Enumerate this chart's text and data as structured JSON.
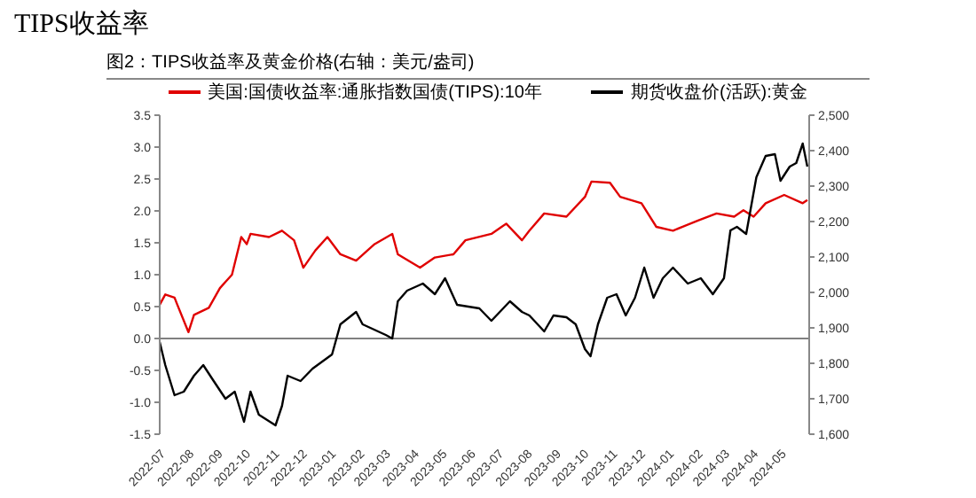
{
  "chart_data": {
    "type": "line",
    "title": "TIPS收益率",
    "subtitle": "图2：TIPS收益率及黄金价格(右轴：美元/盎司)",
    "legend": "top",
    "marker": "none",
    "line_style": "solid",
    "grid": false,
    "xlim": [
      "2022-07-01",
      "2024-06-01"
    ],
    "xticks": [
      {
        "value": "2022-07-01",
        "label": "2022-07"
      },
      {
        "value": "2022-08-01",
        "label": "2022-08"
      },
      {
        "value": "2022-09-01",
        "label": "2022-09"
      },
      {
        "value": "2022-10-01",
        "label": "2022-10"
      },
      {
        "value": "2022-11-01",
        "label": "2022-11"
      },
      {
        "value": "2022-12-01",
        "label": "2022-12"
      },
      {
        "value": "2023-01-01",
        "label": "2023-01"
      },
      {
        "value": "2023-02-01",
        "label": "2023-02"
      },
      {
        "value": "2023-03-01",
        "label": "2023-03"
      },
      {
        "value": "2023-04-01",
        "label": "2023-04"
      },
      {
        "value": "2023-05-01",
        "label": "2023-05"
      },
      {
        "value": "2023-06-01",
        "label": "2023-06"
      },
      {
        "value": "2023-07-01",
        "label": "2023-07"
      },
      {
        "value": "2023-08-01",
        "label": "2023-08"
      },
      {
        "value": "2023-09-01",
        "label": "2023-09"
      },
      {
        "value": "2023-10-01",
        "label": "2023-10"
      },
      {
        "value": "2023-11-01",
        "label": "2023-11"
      },
      {
        "value": "2023-12-01",
        "label": "2023-12"
      },
      {
        "value": "2024-01-01",
        "label": "2024-01"
      },
      {
        "value": "2024-02-01",
        "label": "2024-02"
      },
      {
        "value": "2024-03-01",
        "label": "2024-03"
      },
      {
        "value": "2024-04-01",
        "label": "2024-04"
      },
      {
        "value": "2024-05-01",
        "label": "2024-05"
      }
    ],
    "ylim": [
      -1.5,
      3.5
    ],
    "yticks": [
      {
        "value": -1.5,
        "label": "-1.5"
      },
      {
        "value": -1,
        "label": "-1.0"
      },
      {
        "value": -0.5,
        "label": "-0.5"
      },
      {
        "value": 0,
        "label": "0.0"
      },
      {
        "value": 0.5,
        "label": "0.5"
      },
      {
        "value": 1,
        "label": "1.0"
      },
      {
        "value": 1.5,
        "label": "1.5"
      },
      {
        "value": 2,
        "label": "2.0"
      },
      {
        "value": 2.5,
        "label": "2.5"
      },
      {
        "value": 3,
        "label": "3.0"
      },
      {
        "value": 3.5,
        "label": "3.5"
      }
    ],
    "y2lim": [
      1600,
      2500
    ],
    "y2ticks": [
      {
        "value": 1600,
        "label": "1,600"
      },
      {
        "value": 1700,
        "label": "1,700"
      },
      {
        "value": 1800,
        "label": "1,800"
      },
      {
        "value": 1900,
        "label": "1,900"
      },
      {
        "value": 2000,
        "label": "2,000"
      },
      {
        "value": 2100,
        "label": "2,100"
      },
      {
        "value": 2200,
        "label": "2,200"
      },
      {
        "value": 2300,
        "label": "2,300"
      },
      {
        "value": 2400,
        "label": "2,400"
      },
      {
        "value": 2500,
        "label": "2,500"
      }
    ],
    "ref_lines": [
      {
        "axis": "y",
        "value": 0,
        "color": "#808080"
      }
    ],
    "series": [
      {
        "name": "美国:国债收益率:通胀指数国债(TIPS):10年",
        "color": "#e00000",
        "x": [
          "2022-07-01",
          "2022-07-07",
          "2022-07-17",
          "2022-07-20",
          "2022-08-01",
          "2022-08-07",
          "2022-08-23",
          "2022-09-04",
          "2022-09-17",
          "2022-09-27",
          "2022-10-03",
          "2022-10-07",
          "2022-10-27",
          "2022-11-10",
          "2022-11-23",
          "2022-12-03",
          "2022-12-16",
          "2022-12-29",
          "2023-01-12",
          "2023-01-29",
          "2023-02-18",
          "2023-03-09",
          "2023-03-15",
          "2023-04-08",
          "2023-04-24",
          "2023-05-14",
          "2023-05-27",
          "2023-06-24",
          "2023-07-10",
          "2023-07-27",
          "2023-08-04",
          "2023-08-20",
          "2023-09-13",
          "2023-10-03",
          "2023-10-10",
          "2023-10-30",
          "2023-11-10",
          "2023-12-03",
          "2023-12-19",
          "2024-01-06",
          "2024-02-02",
          "2024-02-22",
          "2024-03-12",
          "2024-03-22",
          "2024-04-02",
          "2024-04-15",
          "2024-05-05",
          "2024-05-25",
          "2024-05-30"
        ],
        "values": [
          0.53,
          0.69,
          0.64,
          0.53,
          0.1,
          0.37,
          0.48,
          0.79,
          1.0,
          1.59,
          1.48,
          1.64,
          1.59,
          1.69,
          1.54,
          1.11,
          1.38,
          1.59,
          1.32,
          1.22,
          1.48,
          1.64,
          1.32,
          1.11,
          1.27,
          1.32,
          1.54,
          1.64,
          1.8,
          1.54,
          1.69,
          1.96,
          1.91,
          2.22,
          2.46,
          2.44,
          2.22,
          2.12,
          1.75,
          1.69,
          1.85,
          1.96,
          1.91,
          2.01,
          1.91,
          2.12,
          2.25,
          2.12,
          2.17
        ]
      },
      {
        "name": "期货收盘价(活跃):黄金",
        "color": "#000000",
        "axis": "y2",
        "x": [
          "2022-07-01",
          "2022-07-07",
          "2022-07-17",
          "2022-07-27",
          "2022-08-07",
          "2022-08-17",
          "2022-08-27",
          "2022-09-10",
          "2022-09-20",
          "2022-09-30",
          "2022-10-07",
          "2022-10-16",
          "2022-11-03",
          "2022-11-10",
          "2022-11-16",
          "2022-11-30",
          "2022-12-13",
          "2023-01-03",
          "2023-01-12",
          "2023-01-29",
          "2023-02-05",
          "2023-03-02",
          "2023-03-09",
          "2023-03-15",
          "2023-03-25",
          "2023-04-11",
          "2023-04-24",
          "2023-05-05",
          "2023-05-18",
          "2023-06-11",
          "2023-06-24",
          "2023-07-14",
          "2023-07-27",
          "2023-08-04",
          "2023-08-20",
          "2023-08-30",
          "2023-09-13",
          "2023-09-23",
          "2023-10-03",
          "2023-10-09",
          "2023-10-17",
          "2023-10-27",
          "2023-11-06",
          "2023-11-16",
          "2023-11-26",
          "2023-12-06",
          "2023-12-16",
          "2023-12-26",
          "2024-01-06",
          "2024-01-22",
          "2024-02-05",
          "2024-02-18",
          "2024-03-01",
          "2024-03-08",
          "2024-03-15",
          "2024-03-25",
          "2024-04-05",
          "2024-04-15",
          "2024-04-25",
          "2024-05-01",
          "2024-05-11",
          "2024-05-18",
          "2024-05-25",
          "2024-05-30"
        ],
        "values": [
          1860,
          1795,
          1710,
          1720,
          1765,
          1795,
          1755,
          1700,
          1720,
          1635,
          1720,
          1655,
          1625,
          1680,
          1765,
          1750,
          1785,
          1825,
          1910,
          1945,
          1910,
          1880,
          1870,
          1975,
          2005,
          2025,
          1995,
          2040,
          1965,
          1955,
          1920,
          1975,
          1945,
          1935,
          1890,
          1935,
          1930,
          1910,
          1840,
          1820,
          1910,
          1985,
          1995,
          1935,
          1985,
          2070,
          1985,
          2040,
          2070,
          2025,
          2040,
          1995,
          2040,
          2175,
          2185,
          2165,
          2325,
          2385,
          2390,
          2315,
          2355,
          2365,
          2420,
          2355
        ]
      }
    ]
  }
}
